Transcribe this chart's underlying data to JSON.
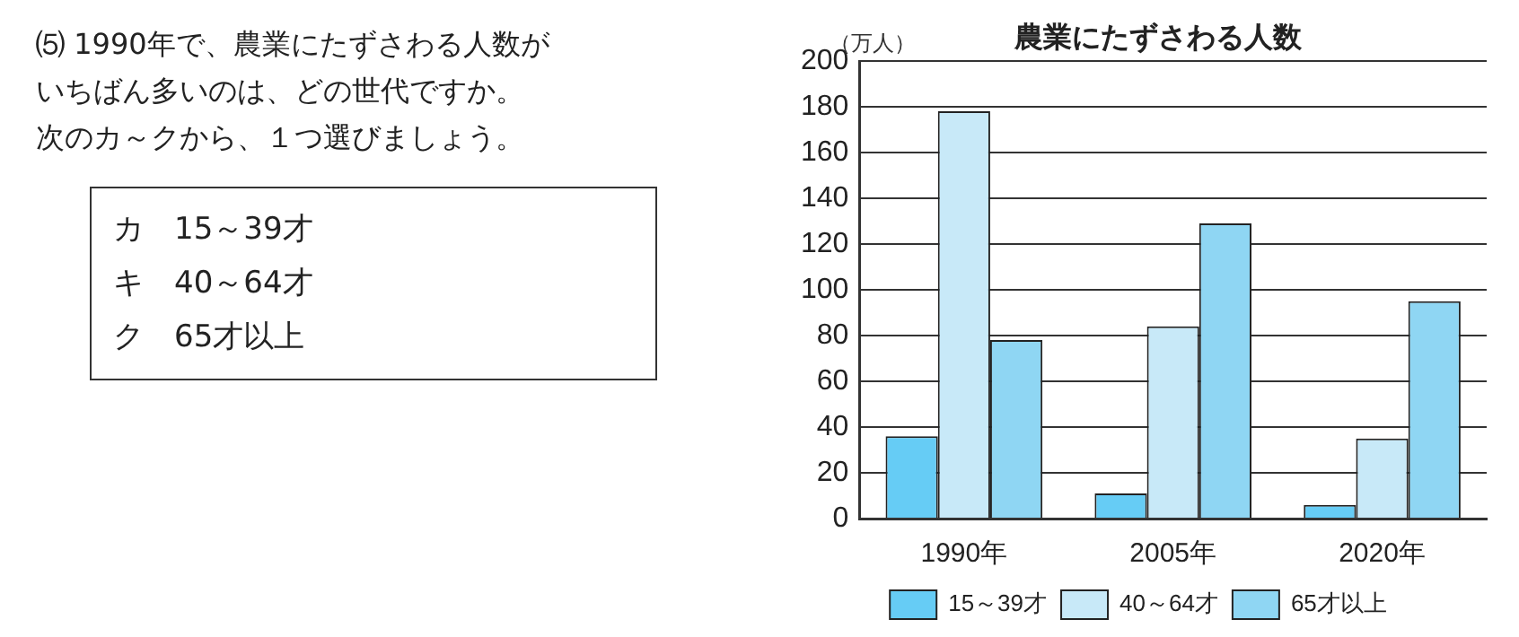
{
  "chart_data": {
    "type": "bar",
    "title": "農業にたずさわる人数",
    "ylabel": "（万人）",
    "categories": [
      "1990年",
      "2005年",
      "2020年"
    ],
    "series": [
      {
        "name": "15～39才",
        "color": "#66ccf5",
        "values": [
          36,
          11,
          6
        ]
      },
      {
        "name": "40～64才",
        "color": "#c8e9f8",
        "values": [
          178,
          84,
          35
        ]
      },
      {
        "name": "65才以上",
        "color": "#8fd6f3",
        "values": [
          78,
          129,
          95
        ]
      }
    ],
    "ylim": [
      0,
      200
    ],
    "yticks": [
      0,
      20,
      40,
      60,
      80,
      100,
      120,
      140,
      160,
      180,
      200
    ],
    "grid": "y",
    "legend": "bottom",
    "annotations": [
      "⑸ 1990年で、農業にたずさわる人数が",
      "いちばん多いのは、どの世代ですか。",
      "次のカ～クから、１つ選びましょう。",
      "カ　15～39才",
      "キ　40～64才",
      "ク　65才以上"
    ]
  }
}
